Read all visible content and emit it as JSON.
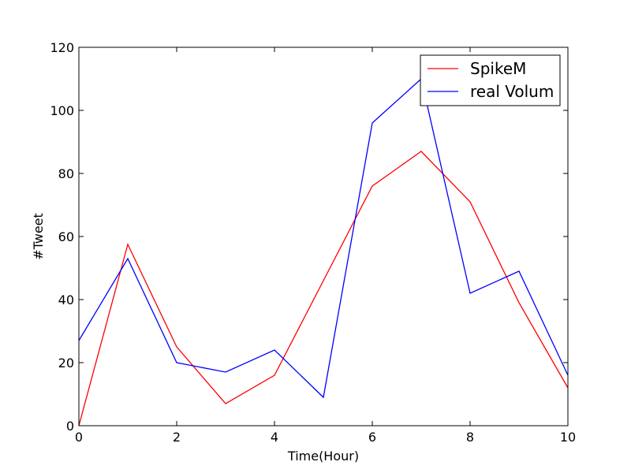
{
  "chart_data": {
    "type": "line",
    "title": "",
    "xlabel": "Time(Hour)",
    "ylabel": "#Tweet",
    "xlim": [
      0,
      10
    ],
    "ylim": [
      0,
      120
    ],
    "xticks": [
      0,
      2,
      4,
      6,
      8,
      10
    ],
    "yticks": [
      0,
      20,
      40,
      60,
      80,
      100,
      120
    ],
    "grid": false,
    "legend_position": "top-right",
    "x": [
      0,
      1,
      2,
      3,
      4,
      5,
      6,
      7,
      8,
      9,
      10
    ],
    "series": [
      {
        "name": "SpikeM",
        "color": "#ff0000",
        "values": [
          0,
          57.5,
          25,
          7,
          16,
          46,
          76,
          87,
          71,
          39,
          12
        ]
      },
      {
        "name": "real Volum",
        "color": "#0000ff",
        "values": [
          27,
          53,
          20,
          17,
          24,
          9,
          96,
          110,
          42,
          49,
          16
        ]
      }
    ]
  }
}
